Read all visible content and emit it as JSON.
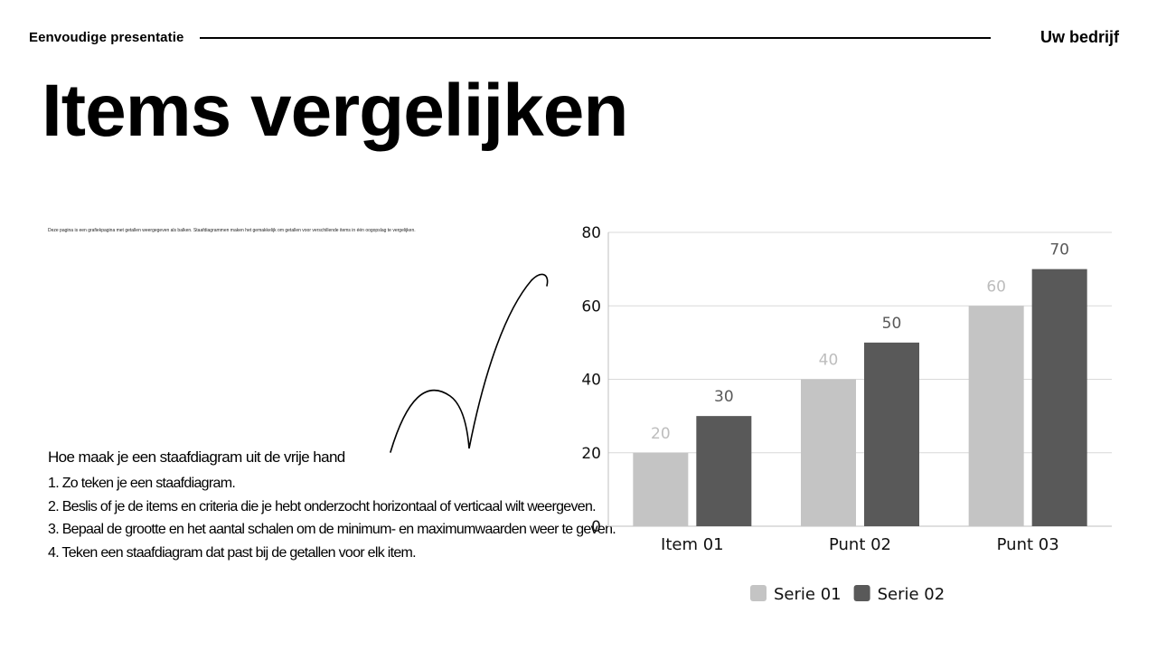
{
  "header": {
    "left": "Eenvoudige presentatie",
    "right": "Uw bedrijf"
  },
  "title": "Items vergelijken",
  "description": "Deze pagina is een grafiekpagina met getallen weergegeven als balken. Staafdiagrammen maken het gemakkelijk om getallen voor verschillende items in één oogopslag te vergelijken.",
  "how_to": {
    "heading": "Hoe maak je een staafdiagram uit de vrije hand",
    "steps": [
      "1. Zo teken je een staafdiagram.",
      "2. Beslis of je de items en criteria die je hebt onderzocht horizontaal of verticaal wilt weergeven.",
      "3. Bepaal de grootte en het aantal schalen om de minimum- en maximumwaarden weer te geven.",
      "4. Teken een staafdiagram dat past bij de getallen voor elk item."
    ]
  },
  "chart_data": {
    "type": "bar",
    "categories": [
      "Item 01",
      "Punt 02",
      "Punt 03"
    ],
    "series": [
      {
        "name": "Serie 01",
        "values": [
          20,
          40,
          60
        ],
        "color": "#c4c4c4",
        "label_color": "#bdbdbd"
      },
      {
        "name": "Serie 02",
        "values": [
          30,
          50,
          70
        ],
        "color": "#595959",
        "label_color": "#595959"
      }
    ],
    "ylim": [
      0,
      80
    ],
    "yticks": [
      0,
      20,
      40,
      60,
      80
    ],
    "grid": true,
    "legend": "bottom",
    "title": "",
    "xlabel": "",
    "ylabel": ""
  }
}
